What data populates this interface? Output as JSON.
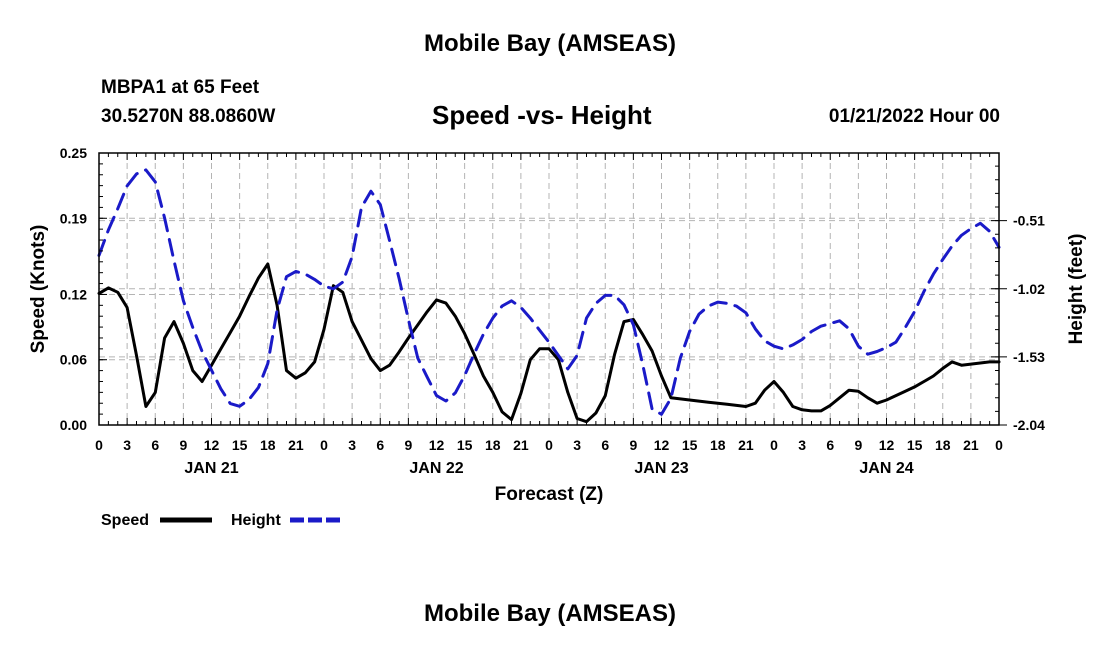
{
  "header": {
    "title": "Mobile Bay (AMSEAS)",
    "station": "MBPA1 at 65 Feet",
    "coords": "30.5270N  88.0860W",
    "subtitle": "Speed -vs- Height",
    "datetime": "01/21/2022 Hour 00",
    "footer_title": "Mobile Bay (AMSEAS)"
  },
  "chart_data": {
    "type": "line",
    "title": "Speed -vs- Height",
    "xlabel": "Forecast (Z)",
    "ylabel": "Speed (Knots)",
    "y2label": "Height (feet)",
    "xlim": [
      0,
      96
    ],
    "ylim": [
      0,
      0.25
    ],
    "y2lim": [
      -2.04,
      -0.0037
    ],
    "y_ticks": [
      0.0,
      0.06,
      0.12,
      0.19,
      0.25
    ],
    "y_tick_labels": [
      "0.00",
      "0.06",
      "0.12",
      "0.19",
      "0.25"
    ],
    "y2_ticks": [
      -2.04,
      -1.53,
      -1.02,
      -0.51
    ],
    "y2_tick_labels": [
      "-2.04",
      "-1.53",
      "-1.02",
      "-0.51"
    ],
    "x_ticks": [
      0,
      3,
      6,
      9,
      12,
      15,
      18,
      21,
      24,
      27,
      30,
      33,
      36,
      39,
      42,
      45,
      48,
      51,
      54,
      57,
      60,
      63,
      66,
      69,
      72,
      75,
      78,
      81,
      84,
      87,
      90,
      93,
      96
    ],
    "x_tick_labels": [
      "0",
      "3",
      "6",
      "9",
      "12",
      "15",
      "18",
      "21",
      "0",
      "3",
      "6",
      "9",
      "12",
      "15",
      "18",
      "21",
      "0",
      "3",
      "6",
      "9",
      "12",
      "15",
      "18",
      "21",
      "0",
      "3",
      "6",
      "9",
      "12",
      "15",
      "18",
      "21",
      "0"
    ],
    "day_labels": [
      {
        "x": 12,
        "label": "JAN 21"
      },
      {
        "x": 36,
        "label": "JAN 22"
      },
      {
        "x": 60,
        "label": "JAN 23"
      },
      {
        "x": 84,
        "label": "JAN 24"
      }
    ],
    "grid": true,
    "legend_position": "bottom-left",
    "series": [
      {
        "name": "Speed",
        "axis": "left",
        "color": "#000000",
        "dash": "solid",
        "x": [
          0,
          1,
          2,
          3,
          4,
          5,
          6,
          7,
          8,
          9,
          10,
          11,
          12,
          13,
          14,
          15,
          16,
          17,
          18,
          19,
          20,
          21,
          22,
          23,
          24,
          25,
          26,
          27,
          28,
          29,
          30,
          31,
          32,
          33,
          34,
          35,
          36,
          37,
          38,
          39,
          40,
          41,
          42,
          43,
          44,
          45,
          46,
          47,
          48,
          49,
          50,
          51,
          52,
          53,
          54,
          55,
          56,
          57,
          58,
          59,
          60,
          61,
          62,
          63,
          64,
          65,
          66,
          67,
          68,
          69,
          70,
          71,
          72,
          73,
          74,
          75,
          76,
          77,
          78,
          79,
          80,
          81,
          82,
          83,
          84,
          85,
          86,
          87,
          88,
          89,
          90,
          91,
          92,
          93,
          94,
          95,
          96
        ],
        "y": [
          0.121,
          0.126,
          0.122,
          0.108,
          0.064,
          0.017,
          0.03,
          0.08,
          0.095,
          0.075,
          0.05,
          0.04,
          0.055,
          0.07,
          0.085,
          0.1,
          0.118,
          0.135,
          0.148,
          0.11,
          0.05,
          0.043,
          0.048,
          0.058,
          0.088,
          0.128,
          0.122,
          0.095,
          0.078,
          0.061,
          0.05,
          0.055,
          0.067,
          0.08,
          0.092,
          0.104,
          0.115,
          0.112,
          0.1,
          0.084,
          0.065,
          0.045,
          0.03,
          0.012,
          0.005,
          0.029,
          0.06,
          0.07,
          0.07,
          0.06,
          0.03,
          0.006,
          0.003,
          0.011,
          0.027,
          0.065,
          0.095,
          0.097,
          0.083,
          0.068,
          0.045,
          0.025,
          0.024,
          0.023,
          0.022,
          0.021,
          0.02,
          0.019,
          0.018,
          0.017,
          0.02,
          0.032,
          0.04,
          0.03,
          0.017,
          0.014,
          0.013,
          0.013,
          0.018,
          0.025,
          0.032,
          0.031,
          0.025,
          0.02,
          0.023,
          0.027,
          0.031,
          0.035,
          0.04,
          0.045,
          0.052,
          0.058,
          0.055,
          0.056,
          0.057,
          0.058,
          0.058
        ]
      },
      {
        "name": "Height",
        "axis": "right",
        "color": "#1a1ac8",
        "dash": "dashed",
        "x": [
          0,
          1,
          2,
          3,
          4,
          5,
          6,
          7,
          8,
          9,
          10,
          11,
          12,
          13,
          14,
          15,
          16,
          17,
          18,
          19,
          20,
          21,
          22,
          23,
          24,
          25,
          26,
          27,
          28,
          29,
          30,
          31,
          32,
          33,
          34,
          35,
          36,
          37,
          38,
          39,
          40,
          41,
          42,
          43,
          44,
          45,
          46,
          47,
          48,
          49,
          50,
          51,
          52,
          53,
          54,
          55,
          56,
          57,
          58,
          59,
          60,
          61,
          62,
          63,
          64,
          65,
          66,
          67,
          68,
          69,
          70,
          71,
          72,
          73,
          74,
          75,
          76,
          77,
          78,
          79,
          80,
          81,
          82,
          83,
          84,
          85,
          86,
          87,
          88,
          89,
          90,
          91,
          92,
          93,
          94,
          95,
          96
        ],
        "y": [
          -0.77,
          -0.58,
          -0.42,
          -0.25,
          -0.16,
          -0.13,
          -0.22,
          -0.49,
          -0.81,
          -1.11,
          -1.31,
          -1.49,
          -1.63,
          -1.77,
          -1.88,
          -1.9,
          -1.85,
          -1.76,
          -1.58,
          -1.18,
          -0.93,
          -0.89,
          -0.91,
          -0.95,
          -1.0,
          -1.02,
          -0.97,
          -0.78,
          -0.41,
          -0.29,
          -0.39,
          -0.66,
          -0.94,
          -1.25,
          -1.54,
          -1.68,
          -1.82,
          -1.86,
          -1.8,
          -1.67,
          -1.51,
          -1.36,
          -1.24,
          -1.15,
          -1.11,
          -1.16,
          -1.24,
          -1.33,
          -1.42,
          -1.52,
          -1.62,
          -1.52,
          -1.24,
          -1.13,
          -1.07,
          -1.07,
          -1.14,
          -1.29,
          -1.59,
          -1.92,
          -1.96,
          -1.84,
          -1.54,
          -1.34,
          -1.21,
          -1.15,
          -1.12,
          -1.13,
          -1.15,
          -1.2,
          -1.32,
          -1.41,
          -1.45,
          -1.47,
          -1.44,
          -1.4,
          -1.34,
          -1.3,
          -1.28,
          -1.26,
          -1.32,
          -1.45,
          -1.51,
          -1.49,
          -1.46,
          -1.42,
          -1.31,
          -1.19,
          -1.04,
          -0.91,
          -0.8,
          -0.7,
          -0.62,
          -0.57,
          -0.53,
          -0.59,
          -0.71
        ]
      }
    ]
  }
}
